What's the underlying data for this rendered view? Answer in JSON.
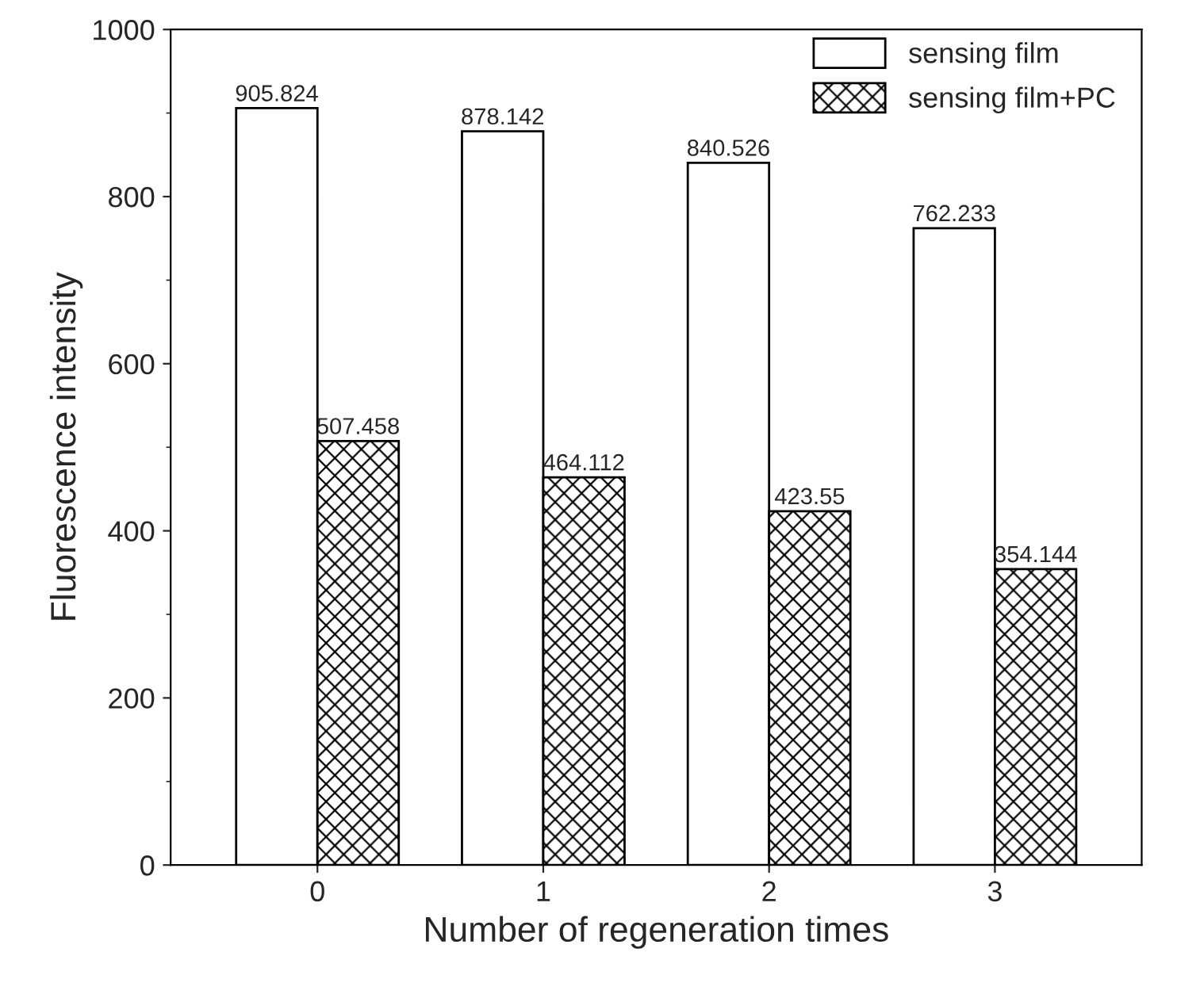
{
  "chart_data": {
    "type": "bar",
    "xlabel": "Number of regeneration times",
    "ylabel": "Fluorescence intensity",
    "categories": [
      "0",
      "1",
      "2",
      "3"
    ],
    "series": [
      {
        "name": "sensing film",
        "color": "#ffffff",
        "values": [
          905.824,
          878.142,
          840.526,
          762.233
        ]
      },
      {
        "name": "sensing film+PC",
        "color": "#000000",
        "values": [
          507.458,
          464.112,
          423.55,
          354.144
        ]
      }
    ],
    "ylim": [
      0,
      1000
    ],
    "yticks": [
      0,
      200,
      400,
      600,
      800,
      1000
    ],
    "data_labels": true,
    "legend": "top right",
    "grid": false
  }
}
